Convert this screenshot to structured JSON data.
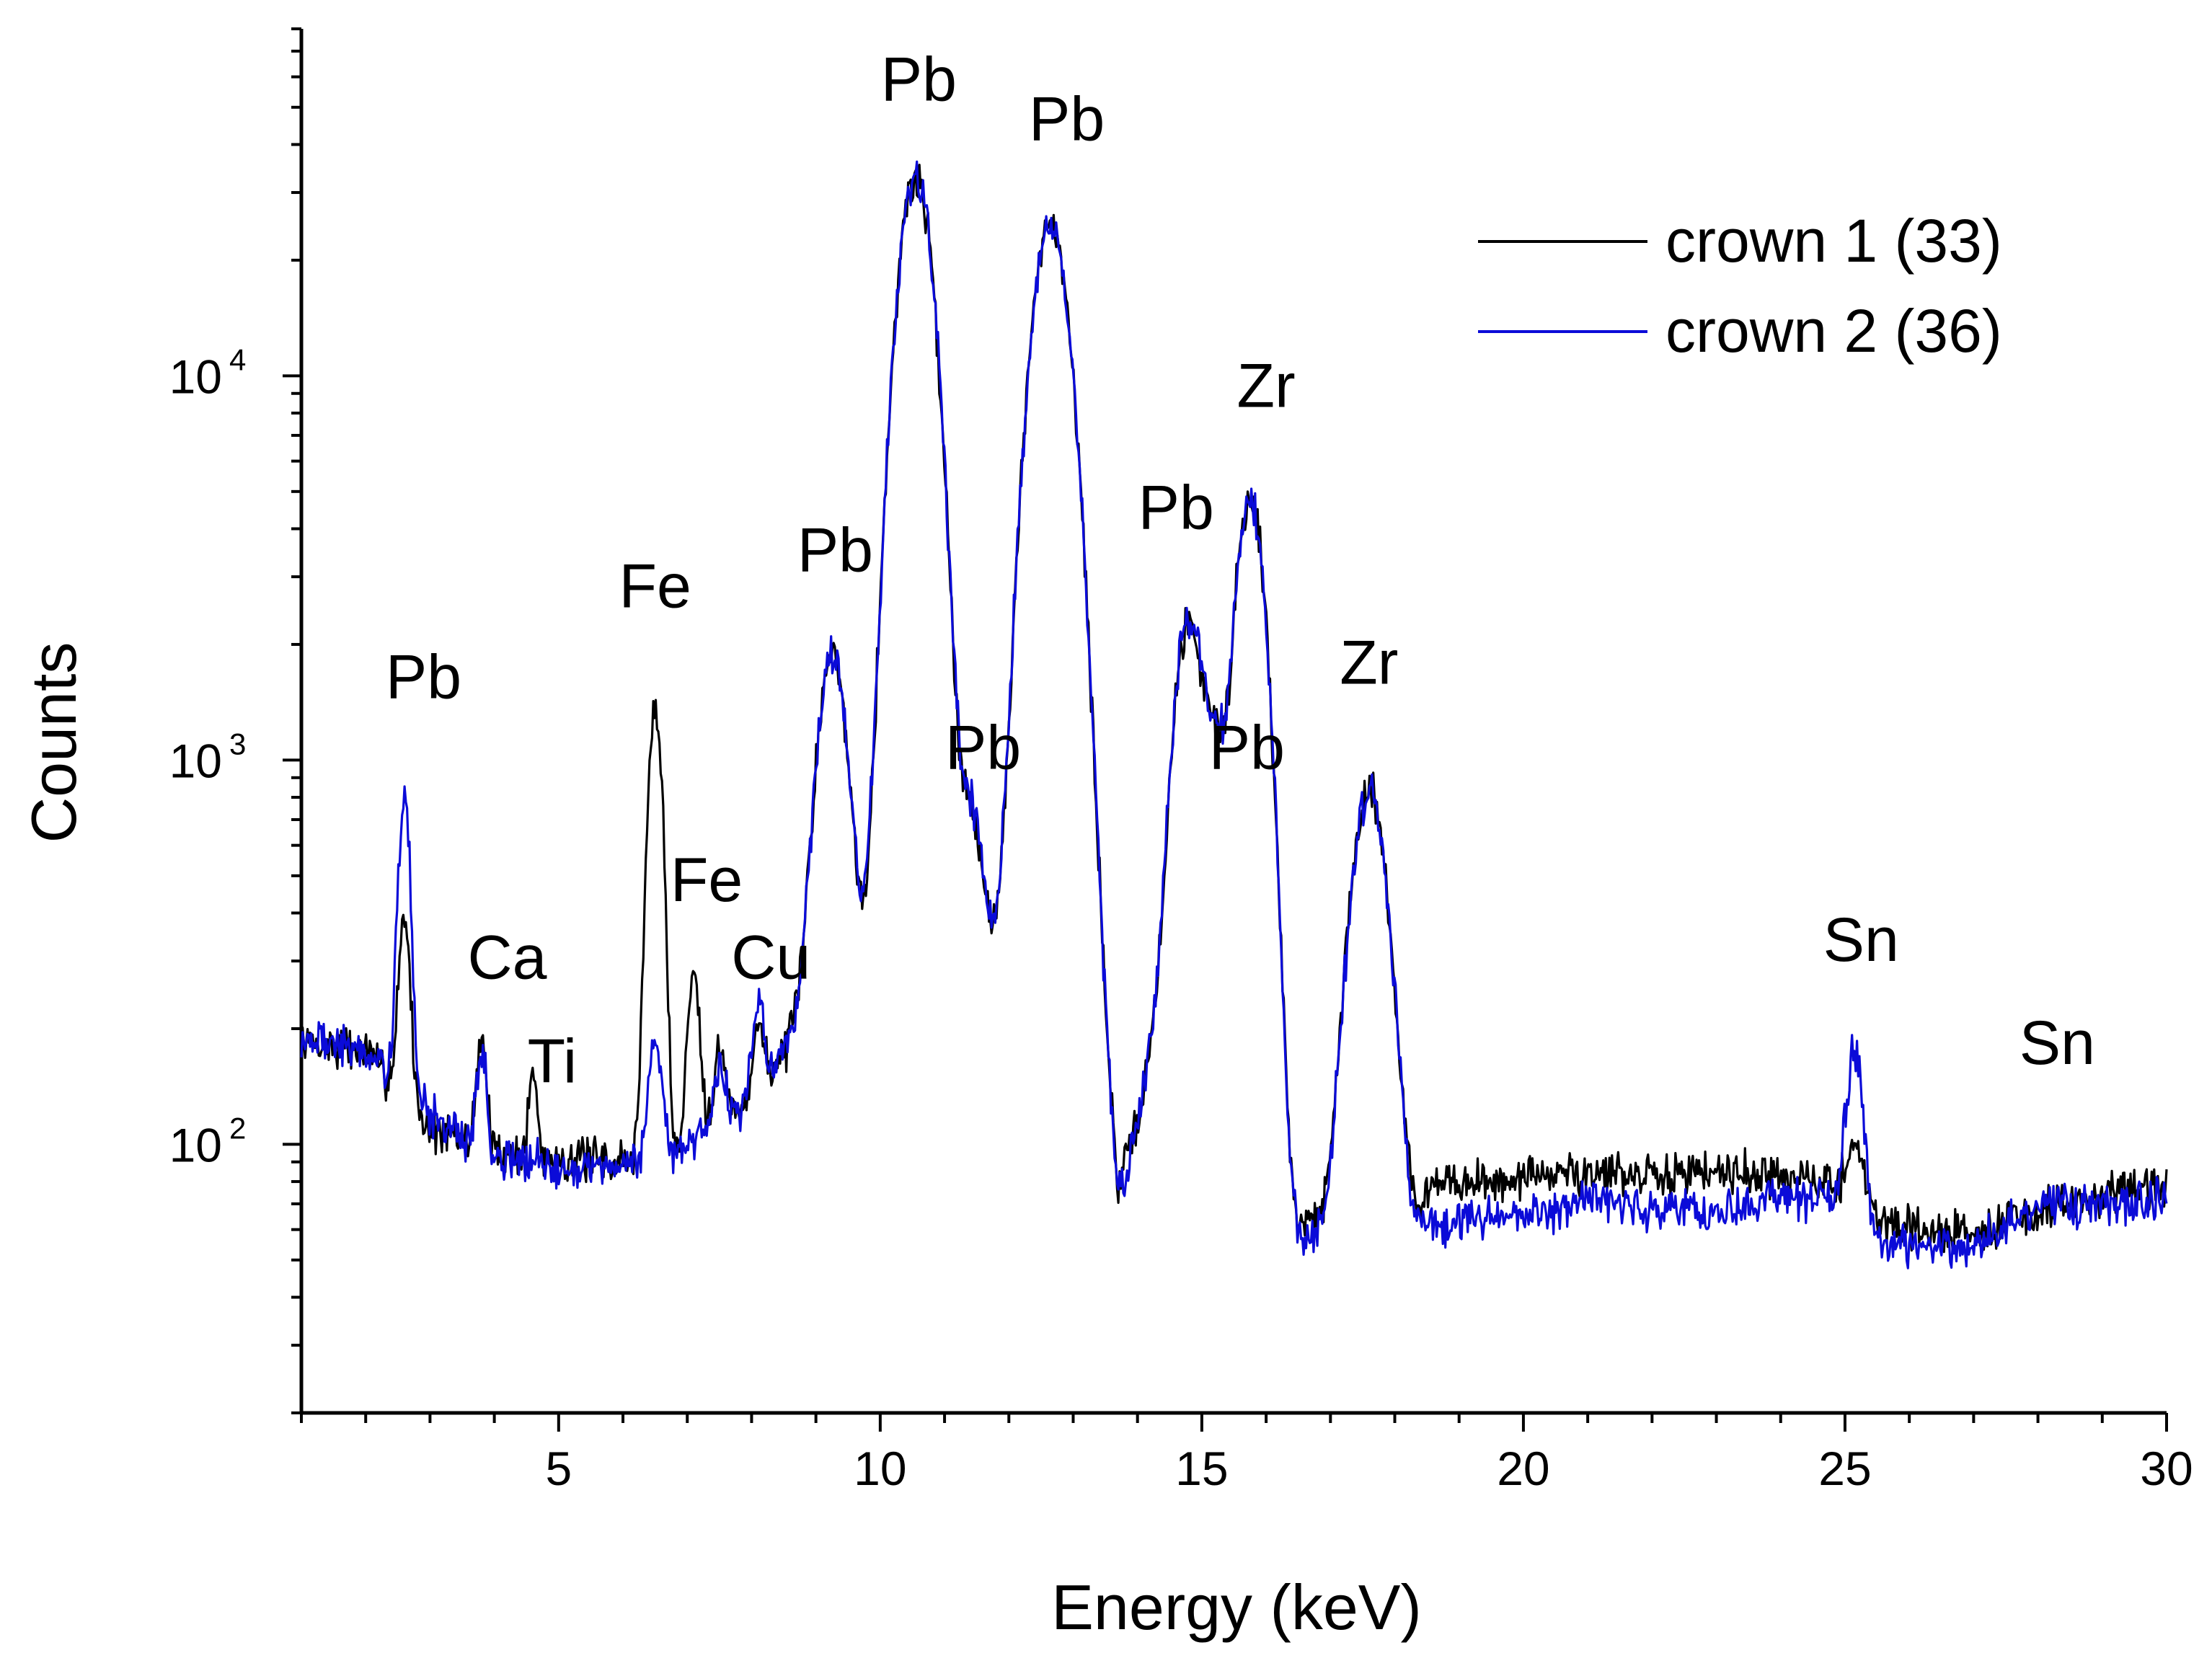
{
  "chart_data": {
    "type": "line",
    "title": "",
    "xlabel": "Energy (keV)",
    "ylabel": "Counts",
    "yscale": "log",
    "xlim": [
      1,
      30
    ],
    "ylim": [
      20,
      80000
    ],
    "xticks": [
      5,
      10,
      15,
      20,
      25,
      30
    ],
    "xtick_labels": [
      "5",
      "10",
      "15",
      "20",
      "25",
      "30"
    ],
    "yticks": [
      {
        "base": "10",
        "exp": "2",
        "value": 100
      },
      {
        "base": "10",
        "exp": "3",
        "value": 1000
      },
      {
        "base": "10",
        "exp": "4",
        "value": 10000
      }
    ],
    "legend": {
      "placement": "top-right"
    },
    "series": [
      {
        "name": "crown 1 (33)",
        "color": "#000000",
        "baseline": [
          [
            1.0,
            185
          ],
          [
            2.0,
            175
          ],
          [
            3.0,
            110
          ],
          [
            4.0,
            95
          ],
          [
            5.0,
            92
          ],
          [
            6.0,
            90
          ],
          [
            7.0,
            90
          ],
          [
            8.0,
            130
          ],
          [
            9.0,
            230
          ],
          [
            10.0,
            280
          ],
          [
            11.0,
            190
          ],
          [
            12.0,
            250
          ],
          [
            13.0,
            500
          ],
          [
            13.7,
            72
          ],
          [
            14.2,
            160
          ],
          [
            15.3,
            280
          ],
          [
            16.0,
            160
          ],
          [
            16.3,
            62
          ],
          [
            17.0,
            62
          ],
          [
            18.3,
            62
          ],
          [
            18.5,
            77
          ],
          [
            20.0,
            82
          ],
          [
            21.0,
            85
          ],
          [
            22.0,
            82
          ],
          [
            23.0,
            87
          ],
          [
            24.0,
            82
          ],
          [
            24.8,
            78
          ],
          [
            25.5,
            65
          ],
          [
            26.0,
            60
          ],
          [
            27.0,
            59
          ],
          [
            28.0,
            66
          ],
          [
            29.0,
            74
          ],
          [
            30.0,
            76
          ]
        ],
        "peaks": [
          [
            2.6,
            260,
            0.08
          ],
          [
            3.8,
            95,
            0.07
          ],
          [
            4.6,
            60,
            0.06
          ],
          [
            6.5,
            1270,
            0.1
          ],
          [
            7.1,
            190,
            0.09
          ],
          [
            7.5,
            70,
            0.09
          ],
          [
            8.1,
            70,
            0.08
          ],
          [
            9.25,
            1650,
            0.2
          ],
          [
            10.55,
            32500,
            0.24
          ],
          [
            11.4,
            520,
            0.18
          ],
          [
            12.65,
            24000,
            0.26
          ],
          [
            14.8,
            2100,
            0.2
          ],
          [
            15.2,
            650,
            0.12
          ],
          [
            15.75,
            4600,
            0.2
          ],
          [
            17.6,
            780,
            0.24
          ],
          [
            25.15,
            30,
            0.12
          ]
        ],
        "noise": 0.08,
        "seed": 7
      },
      {
        "name": "crown 2 (36)",
        "color": "#0b0bd8",
        "baseline": [
          [
            1.0,
            190
          ],
          [
            2.0,
            175
          ],
          [
            3.0,
            120
          ],
          [
            4.0,
            92
          ],
          [
            5.0,
            88
          ],
          [
            6.0,
            88
          ],
          [
            7.0,
            100
          ],
          [
            8.0,
            130
          ],
          [
            9.0,
            230
          ],
          [
            10.0,
            280
          ],
          [
            11.0,
            190
          ],
          [
            12.0,
            250
          ],
          [
            13.0,
            500
          ],
          [
            13.7,
            68
          ],
          [
            14.2,
            160
          ],
          [
            15.3,
            280
          ],
          [
            16.0,
            160
          ],
          [
            16.3,
            58
          ],
          [
            17.0,
            58
          ],
          [
            18.3,
            58
          ],
          [
            18.5,
            62
          ],
          [
            20.0,
            65
          ],
          [
            21.0,
            70
          ],
          [
            22.0,
            68
          ],
          [
            23.0,
            66
          ],
          [
            24.0,
            72
          ],
          [
            24.8,
            72
          ],
          [
            25.5,
            55
          ],
          [
            26.0,
            55
          ],
          [
            27.0,
            54
          ],
          [
            28.0,
            70
          ],
          [
            29.0,
            70
          ],
          [
            30.0,
            71
          ]
        ],
        "peaks": [
          [
            2.6,
            680,
            0.08
          ],
          [
            3.8,
            80,
            0.07
          ],
          [
            6.5,
            95,
            0.09
          ],
          [
            7.5,
            45,
            0.09
          ],
          [
            8.1,
            90,
            0.08
          ],
          [
            9.25,
            1650,
            0.2
          ],
          [
            10.55,
            32500,
            0.24
          ],
          [
            11.4,
            520,
            0.18
          ],
          [
            12.65,
            24000,
            0.26
          ],
          [
            14.8,
            2100,
            0.2
          ],
          [
            15.2,
            650,
            0.12
          ],
          [
            15.75,
            4600,
            0.2
          ],
          [
            17.6,
            780,
            0.24
          ],
          [
            25.15,
            110,
            0.12
          ]
        ],
        "noise": 0.08,
        "seed": 19
      }
    ],
    "annotations": [
      {
        "text": "Pb",
        "x": 2.9,
        "y": 1450
      },
      {
        "text": "Ca",
        "x": 4.2,
        "y": 270
      },
      {
        "text": "Ti",
        "x": 4.9,
        "y": 145
      },
      {
        "text": "Fe",
        "x": 6.5,
        "y": 2500
      },
      {
        "text": "Fe",
        "x": 7.3,
        "y": 430
      },
      {
        "text": "Cu",
        "x": 8.3,
        "y": 270
      },
      {
        "text": "Pb",
        "x": 9.3,
        "y": 3100
      },
      {
        "text": "Pb",
        "x": 11.6,
        "y": 950
      },
      {
        "text": "Pb",
        "x": 10.6,
        "y": 52000
      },
      {
        "text": "Pb",
        "x": 12.9,
        "y": 41000
      },
      {
        "text": "Pb",
        "x": 14.6,
        "y": 4000
      },
      {
        "text": "Pb",
        "x": 15.7,
        "y": 950
      },
      {
        "text": "Zr",
        "x": 16.0,
        "y": 8300
      },
      {
        "text": "Zr",
        "x": 17.6,
        "y": 1580
      },
      {
        "text": "Sn",
        "x": 25.25,
        "y": 300
      },
      {
        "text": "Sn",
        "x": 28.3,
        "y": 162
      }
    ]
  }
}
